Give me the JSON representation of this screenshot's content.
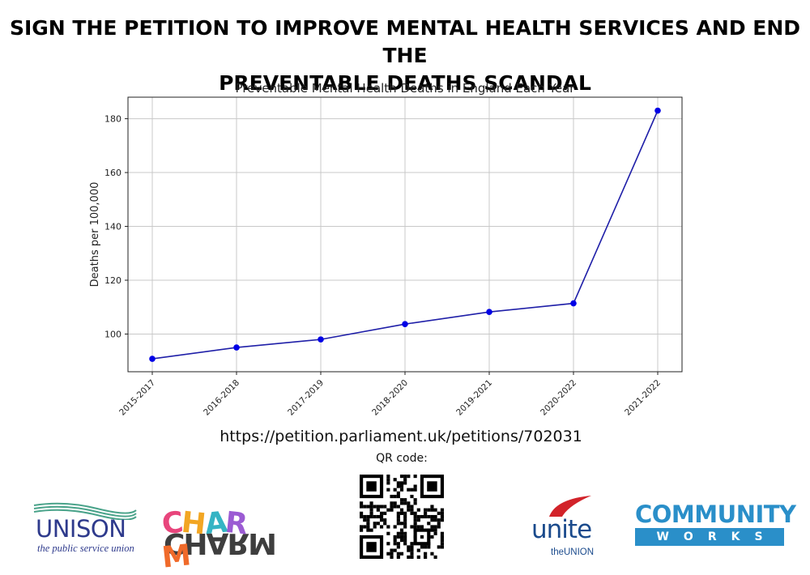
{
  "headline": {
    "line1": "SIGN THE PETITION TO IMPROVE MENTAL HEALTH SERVICES AND END THE",
    "line2": "PREVENTABLE DEATHS SCANDAL"
  },
  "chart_data": {
    "type": "line",
    "title": "Preventable Mental Health Deaths in England Each Year",
    "xlabel": "",
    "ylabel": "Deaths per 100,000",
    "categories": [
      "2015-2017",
      "2016-2018",
      "2017-2019",
      "2018-2020",
      "2019-2021",
      "2020-2022",
      "2021-2022"
    ],
    "series": [
      {
        "values": [
          90.8,
          95.0,
          98.0,
          103.7,
          108.2,
          111.4,
          183.0
        ]
      }
    ],
    "yticks": [
      100,
      120,
      140,
      160,
      180
    ],
    "ylim": [
      86,
      188
    ],
    "grid": true,
    "line_color": "#1f1fa8",
    "marker_color": "#0000e6"
  },
  "petition": {
    "url": "https://petition.parliament.uk/petitions/702031",
    "qr_label": "QR code:"
  },
  "logos": {
    "unison": {
      "name": "UNISON",
      "tagline": "the public service union",
      "color": "#2e3a8c"
    },
    "charm": {
      "name": "CHARM",
      "letters": [
        "C",
        "H",
        "A",
        "R",
        "M"
      ],
      "colors": [
        "#e8457c",
        "#f2a623",
        "#35b4c4",
        "#9b5bd3",
        "#f06a2a"
      ]
    },
    "unite": {
      "name": "unite",
      "sub": "theUNION",
      "color": "#1a4a8c",
      "accent": "#d2232a"
    },
    "community": {
      "name": "COMMUNITY",
      "sub": "WORKS",
      "color": "#2a8fc9"
    }
  }
}
